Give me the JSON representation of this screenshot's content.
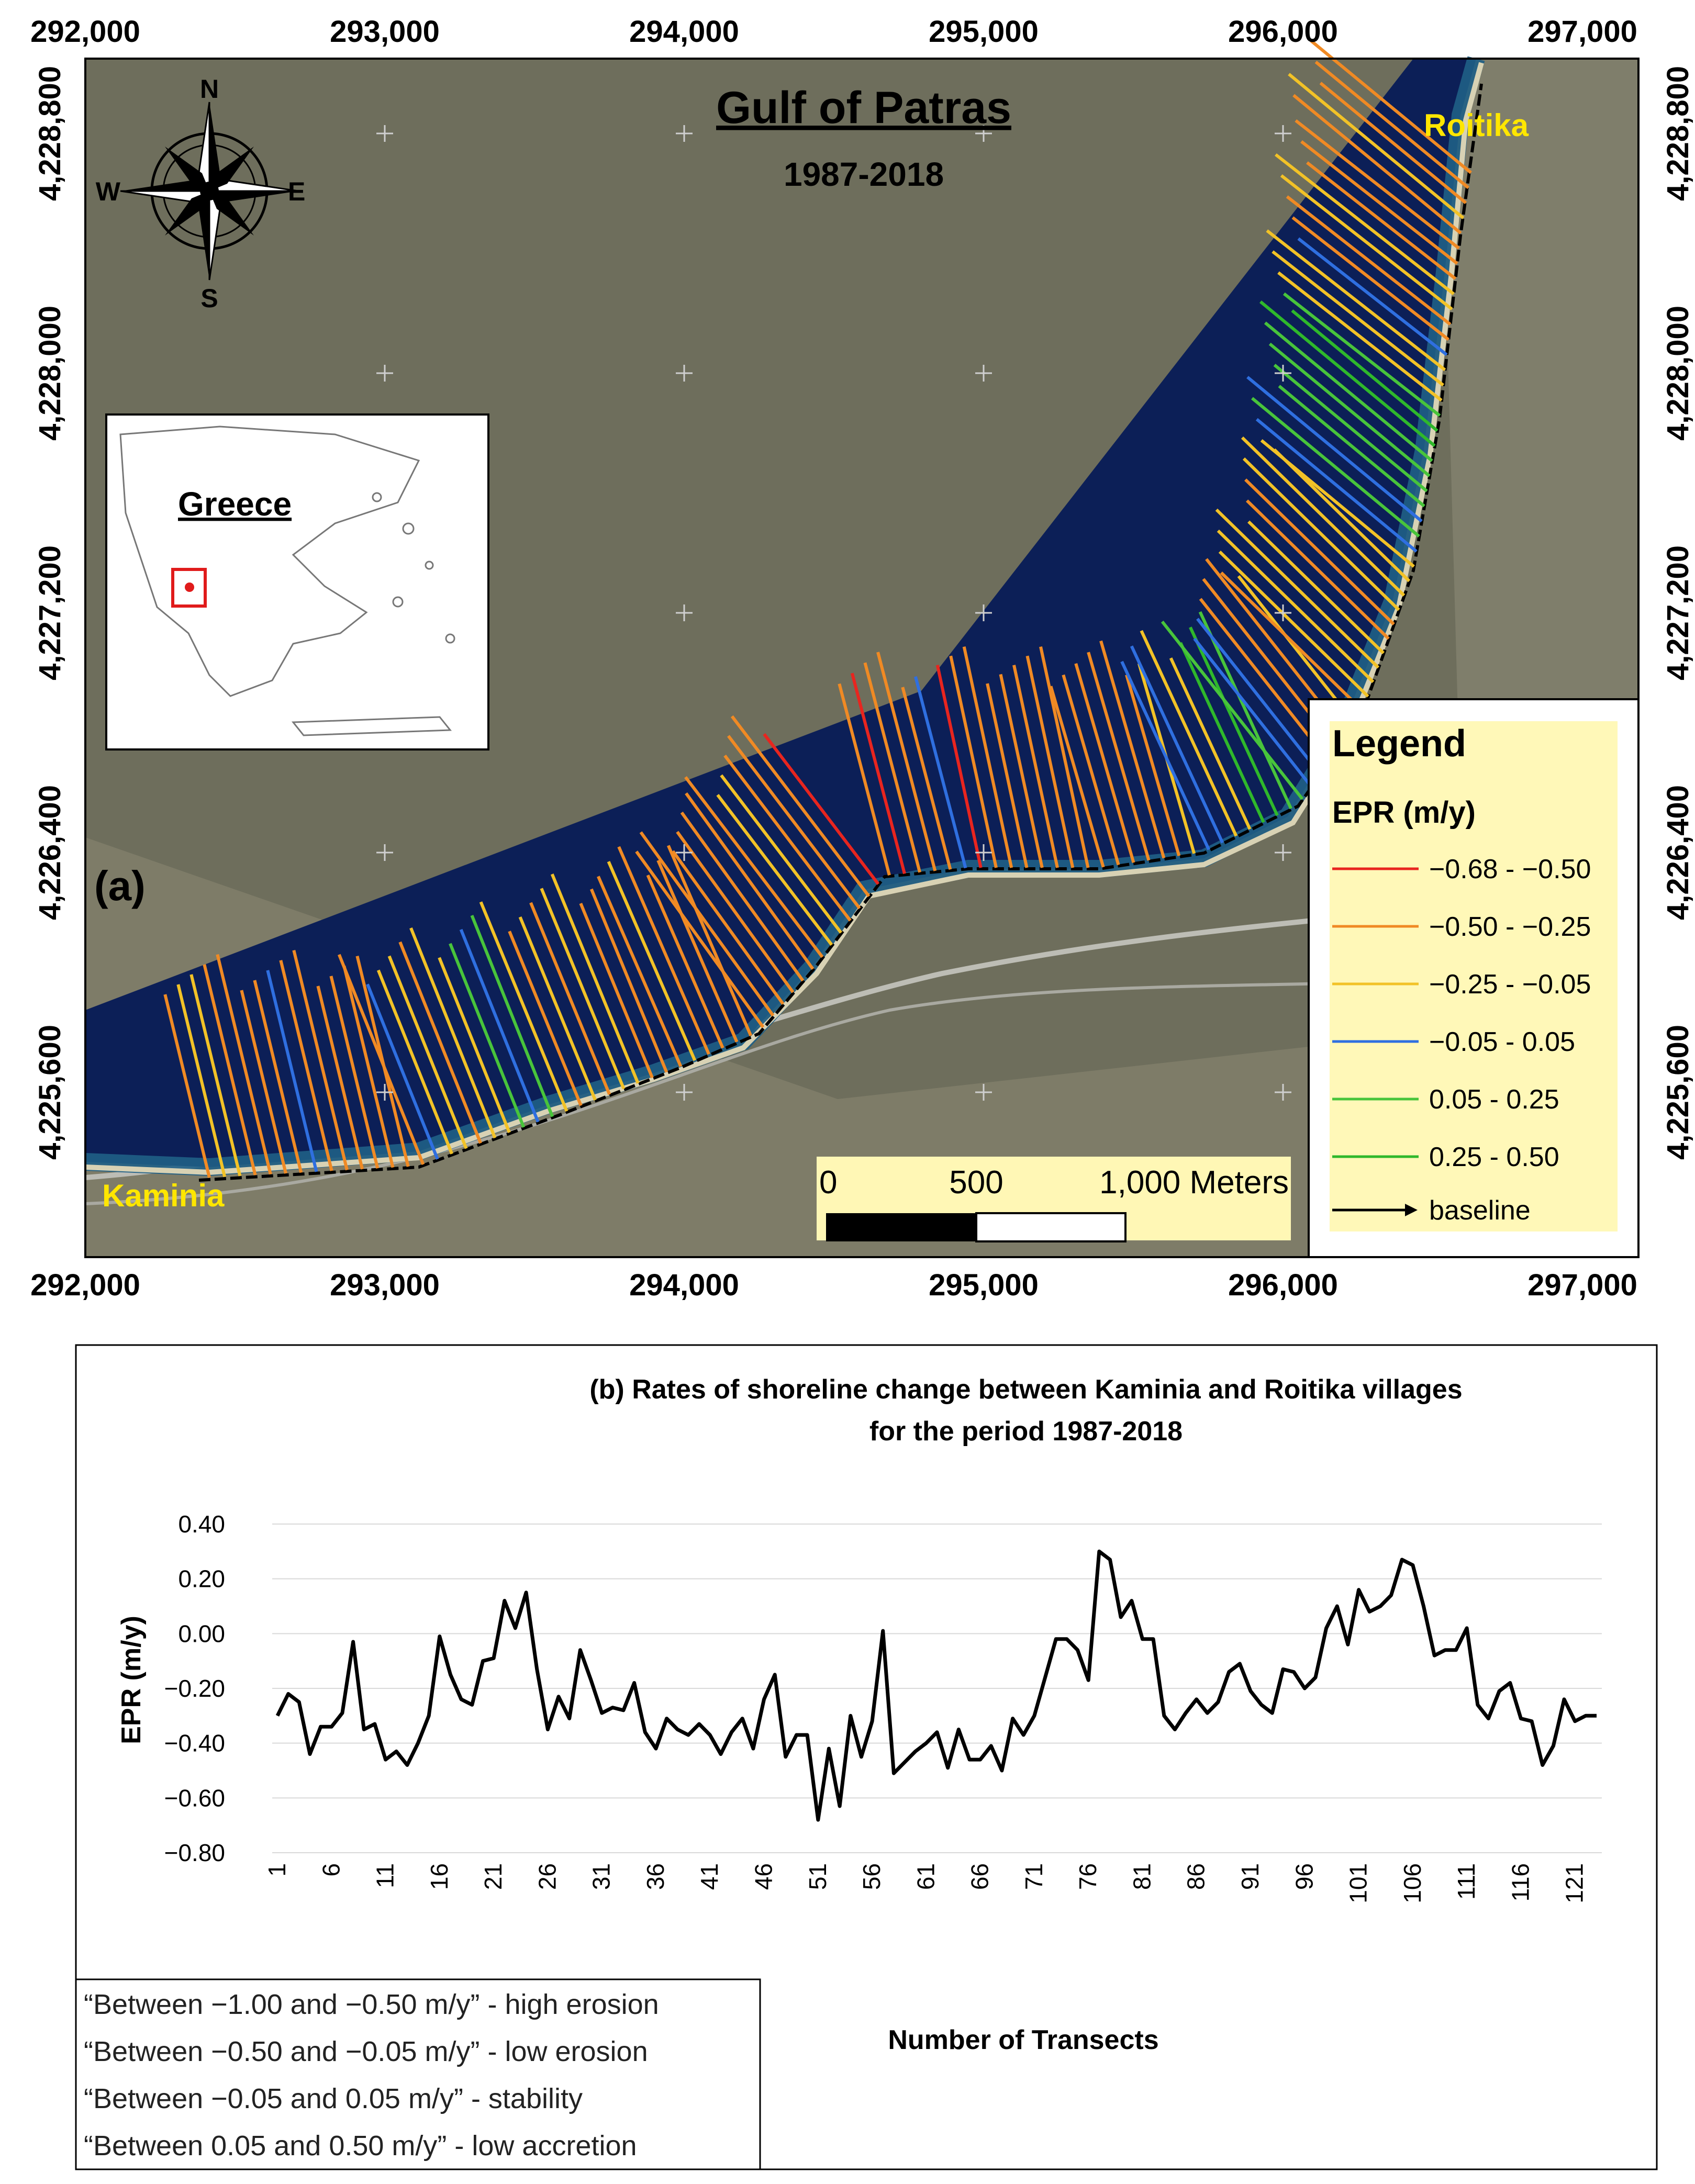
{
  "map": {
    "title": "Gulf of Patras",
    "subtitle": "1987-2018",
    "panel_label": "(a)",
    "places": {
      "northeast": "Roitika",
      "southwest": "Kaminia"
    },
    "compass": {
      "n": "N",
      "e": "E",
      "s": "S",
      "w": "W"
    },
    "inset_label": "Greece",
    "x_ticks": [
      "292,000",
      "293,000",
      "294,000",
      "295,000",
      "296,000",
      "297,000"
    ],
    "y_ticks": [
      "4,228,800",
      "4,228,000",
      "4,227,200",
      "4,226,400",
      "4,225,600"
    ],
    "scale_bar": {
      "zero": "0",
      "mid": "500",
      "end": "1,000 Meters"
    },
    "legend": {
      "title": "Legend",
      "subtitle": "EPR (m/y)",
      "items": [
        {
          "label": "−0.68 - −0.50",
          "color": "#e8251f"
        },
        {
          "label": "−0.50 - −0.25",
          "color": "#f08a24"
        },
        {
          "label": "−0.25 - −0.05",
          "color": "#f2c227"
        },
        {
          "label": "−0.05 - 0.05",
          "color": "#2f6fe0"
        },
        {
          "label": "0.05 - 0.25",
          "color": "#48c43b"
        },
        {
          "label": "0.25 - 0.50",
          "color": "#2fb82b"
        }
      ],
      "baseline_label": "baseline"
    }
  },
  "chart_data": {
    "type": "line",
    "title": "(b) Rates of shoreline change between Kaminia and Roitika villages",
    "title_line2": "for the period 1987-2018",
    "xlabel": "Number of Transects",
    "ylabel": "EPR (m/y)",
    "ylim": [
      -0.8,
      0.4
    ],
    "y_ticks": [
      "0.40",
      "0.20",
      "0.00",
      "−0.20",
      "−0.40",
      "−0.60",
      "−0.80"
    ],
    "x_ticks": [
      "1",
      "6",
      "11",
      "16",
      "21",
      "26",
      "31",
      "36",
      "41",
      "46",
      "51",
      "56",
      "61",
      "66",
      "71",
      "76",
      "81",
      "86",
      "91",
      "96",
      "101",
      "106",
      "111",
      "116",
      "121"
    ],
    "series": [
      {
        "name": "EPR",
        "x_start": 1,
        "values": [
          -0.3,
          -0.22,
          -0.25,
          -0.44,
          -0.34,
          -0.34,
          -0.29,
          -0.03,
          -0.35,
          -0.33,
          -0.46,
          -0.43,
          -0.48,
          -0.4,
          -0.3,
          -0.01,
          -0.15,
          -0.24,
          -0.26,
          -0.1,
          -0.09,
          0.12,
          0.02,
          0.15,
          -0.13,
          -0.35,
          -0.23,
          -0.31,
          -0.06,
          -0.17,
          -0.29,
          -0.27,
          -0.28,
          -0.18,
          -0.36,
          -0.42,
          -0.31,
          -0.35,
          -0.37,
          -0.33,
          -0.37,
          -0.44,
          -0.36,
          -0.31,
          -0.42,
          -0.24,
          -0.15,
          -0.45,
          -0.37,
          -0.37,
          -0.68,
          -0.42,
          -0.63,
          -0.3,
          -0.45,
          -0.32,
          0.01,
          -0.51,
          -0.47,
          -0.43,
          -0.4,
          -0.36,
          -0.49,
          -0.35,
          -0.46,
          -0.46,
          -0.41,
          -0.5,
          -0.31,
          -0.37,
          -0.3,
          -0.16,
          -0.02,
          -0.02,
          -0.06,
          -0.17,
          0.3,
          0.27,
          0.06,
          0.12,
          -0.02,
          -0.02,
          -0.3,
          -0.35,
          -0.29,
          -0.24,
          -0.29,
          -0.25,
          -0.14,
          -0.11,
          -0.21,
          -0.26,
          -0.29,
          -0.13,
          -0.14,
          -0.2,
          -0.16,
          0.02,
          0.1,
          -0.04,
          0.16,
          0.08,
          0.1,
          0.14,
          0.27,
          0.25,
          0.1,
          -0.08,
          -0.06,
          -0.06,
          0.02,
          -0.26,
          -0.31,
          -0.21,
          -0.18,
          -0.31,
          -0.32,
          -0.48,
          -0.41,
          -0.24,
          -0.32,
          -0.3,
          -0.3
        ]
      }
    ],
    "notes": [
      "“Between −1.00 and −0.50 m/y” - high erosion",
      "“Between −0.50 and −0.05 m/y” - low erosion",
      "“Between −0.05 and 0.05 m/y” - stability",
      "“Between 0.05 and 0.50 m/y” - low accretion"
    ]
  }
}
